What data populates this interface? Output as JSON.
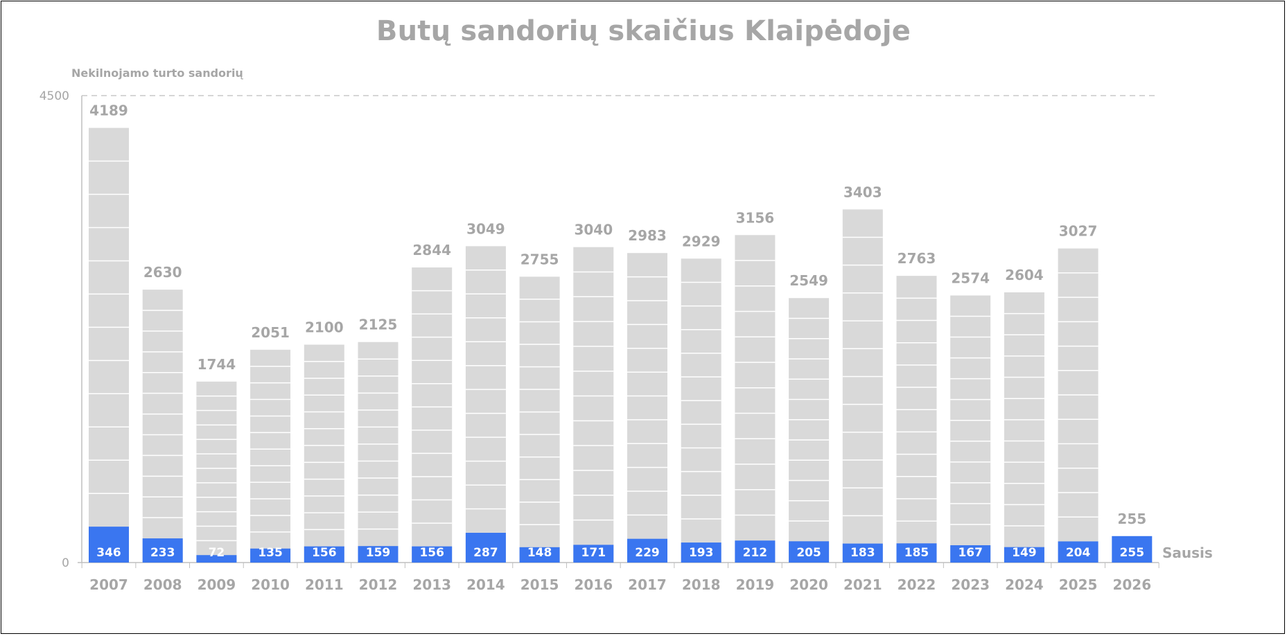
{
  "chart_data": {
    "type": "bar",
    "title": "Butų sandorių skaičius Klaipėdoje",
    "ylabel": "Nekilnojamo turto sandorių",
    "ylim": [
      0,
      4500
    ],
    "yticks": [
      "0",
      "4500"
    ],
    "categories": [
      "2007",
      "2008",
      "2009",
      "2010",
      "2011",
      "2012",
      "2013",
      "2014",
      "2015",
      "2016",
      "2017",
      "2018",
      "2019",
      "2020",
      "2021",
      "2022",
      "2023",
      "2024",
      "2025",
      "2026"
    ],
    "series": [
      {
        "name": "Sausis",
        "values": [
          346,
          233,
          72,
          135,
          156,
          159,
          156,
          287,
          148,
          171,
          229,
          193,
          212,
          205,
          183,
          185,
          167,
          149,
          204,
          255
        ]
      },
      {
        "name": "",
        "values": [
          4189,
          2630,
          1744,
          2051,
          2100,
          2125,
          2844,
          3049,
          2755,
          3040,
          2983,
          2929,
          3156,
          2549,
          3403,
          2763,
          2574,
          2604,
          3027,
          255
        ]
      }
    ],
    "grid": "top dashed line at 4500",
    "colors": {
      "total": "#d9d9d9",
      "jan": "#3a76f0",
      "text": "#a6a6a6",
      "axis": "#bfbfbf"
    }
  }
}
